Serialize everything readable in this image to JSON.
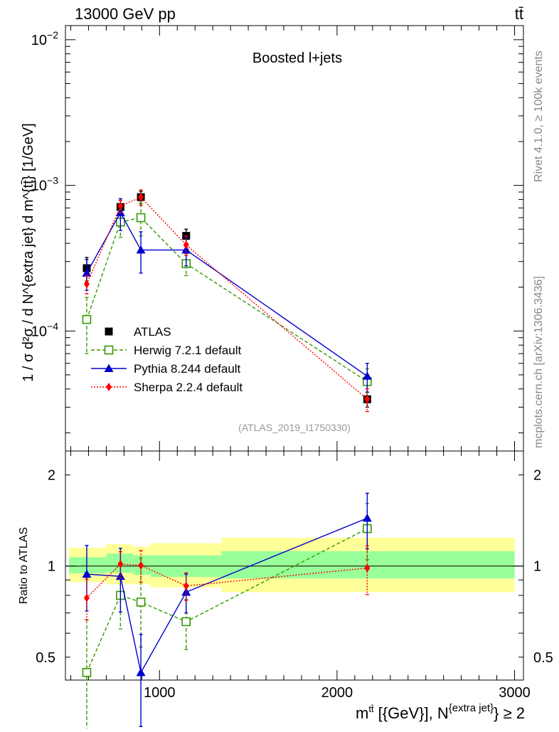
{
  "header": {
    "left": "13000 GeV pp",
    "right": "tt̄"
  },
  "side_labels": {
    "rivet": "Rivet 4.1.0, ≥ 100k events",
    "mcplots": "mcplots.cern.ch [arXiv:1306.3436]"
  },
  "chart_data": [
    {
      "type": "scatter",
      "panel": "main",
      "title": "Boosted l+jets",
      "watermark": "(ATLAS_2019_I1750330)",
      "ylabel": "1 / σ d²σ / d N^{extra jet} d m^{tt̄} [1/GeV]",
      "yscale": "log",
      "ylim": [
        1.5e-05,
        0.0125
      ],
      "xlim": [
        470,
        3050
      ],
      "y_ticks": [
        {
          "value": 0.0001,
          "base": "10",
          "exp": "−4"
        },
        {
          "value": 0.001,
          "base": "10",
          "exp": "−3"
        },
        {
          "value": 0.01,
          "base": "10",
          "exp": "−2"
        }
      ],
      "legend_position": "lower-left",
      "series": [
        {
          "name": "ATLAS",
          "color": "#000000",
          "marker": "square-filled",
          "line": "none",
          "x": [
            590,
            780,
            895,
            1150,
            2170
          ],
          "y": [
            0.00027,
            0.00071,
            0.00083,
            0.00045,
            3.4e-05
          ],
          "err_up": [
            5e-05,
            8e-05,
            8e-05,
            5e-05,
            4e-06
          ],
          "err_down": [
            5e-05,
            8e-05,
            8e-05,
            5e-05,
            4e-06
          ]
        },
        {
          "name": "Herwig 7.2.1 default",
          "color": "#339900",
          "marker": "square-open",
          "line": "dashed",
          "x": [
            590,
            780,
            895,
            1150,
            2170
          ],
          "y": [
            0.00012,
            0.00056,
            0.0006,
            0.00029,
            4.5e-05
          ],
          "err_up": [
            5e-05,
            0.00012,
            0.00015,
            5e-05,
            1e-05
          ],
          "err_down": [
            5e-05,
            0.00012,
            0.00015,
            5e-05,
            1e-05
          ]
        },
        {
          "name": "Pythia 8.244 default",
          "color": "#0000cc",
          "marker": "triangle-filled",
          "line": "solid",
          "x": [
            590,
            780,
            895,
            1150,
            2170
          ],
          "y": [
            0.00025,
            0.00065,
            0.00036,
            0.00036,
            4.9e-05
          ],
          "err_up": [
            6e-05,
            0.00016,
            0.00012,
            8e-05,
            1.1e-05
          ],
          "err_down": [
            6e-05,
            0.00016,
            0.00011,
            8e-05,
            1.1e-05
          ]
        },
        {
          "name": "Sherpa 2.2.4 default",
          "color": "#ff0000",
          "marker": "diamond-filled",
          "line": "dotted",
          "x": [
            590,
            780,
            895,
            1150,
            2170
          ],
          "y": [
            0.00021,
            0.00072,
            0.00083,
            0.00039,
            3.4e-05
          ],
          "err_up": [
            3e-05,
            7e-05,
            0.0001,
            6e-05,
            6e-06
          ],
          "err_down": [
            3e-05,
            7e-05,
            0.0001,
            6e-05,
            6e-06
          ]
        }
      ]
    },
    {
      "type": "scatter",
      "panel": "ratio",
      "ylabel": "Ratio to ATLAS",
      "xlabel_main": "m",
      "xlabel_sup": "tt̄",
      "xlabel_mid": " [{GeV}], N",
      "xlabel_sup2": "{extra jet}",
      "xlabel_tail": "} ≥ 2",
      "yscale": "log",
      "ylim": [
        0.42,
        2.4
      ],
      "xlim": [
        470,
        3050
      ],
      "x_ticks": [
        {
          "value": 1000,
          "label": "1000"
        },
        {
          "value": 2000,
          "label": "2000"
        },
        {
          "value": 3000,
          "label": "3000"
        }
      ],
      "y_ticks": [
        {
          "value": 0.5,
          "label": "0.5"
        },
        {
          "value": 1,
          "label": "1"
        },
        {
          "value": 2,
          "label": "2"
        }
      ],
      "bands": [
        {
          "x0": 490,
          "x1": 700,
          "inner": [
            0.945,
            1.07
          ],
          "outer": [
            0.885,
            1.15
          ]
        },
        {
          "x0": 700,
          "x1": 850,
          "inner": [
            0.95,
            1.1
          ],
          "outer": [
            0.87,
            1.18
          ]
        },
        {
          "x0": 850,
          "x1": 950,
          "inner": [
            0.935,
            1.085
          ],
          "outer": [
            0.87,
            1.16
          ]
        },
        {
          "x0": 950,
          "x1": 1350,
          "inner": [
            0.92,
            1.085
          ],
          "outer": [
            0.85,
            1.19
          ]
        },
        {
          "x0": 1350,
          "x1": 3000,
          "inner": [
            0.91,
            1.12
          ],
          "outer": [
            0.82,
            1.24
          ]
        }
      ],
      "series": [
        {
          "name": "Herwig 7.2.1 default",
          "color": "#339900",
          "marker": "square-open",
          "line": "dashed",
          "x": [
            590,
            780,
            895,
            1150,
            2170
          ],
          "y": [
            0.445,
            0.8,
            0.76,
            0.655,
            1.33
          ],
          "err_up": [
            0.22,
            0.2,
            0.3,
            0.12,
            0.28
          ],
          "err_down": [
            0.2,
            0.18,
            0.22,
            0.125,
            0.28
          ]
        },
        {
          "name": "Pythia 8.244 default",
          "color": "#0000cc",
          "marker": "triangle-filled",
          "line": "solid",
          "x": [
            590,
            780,
            895,
            1150,
            2170
          ],
          "y": [
            0.94,
            0.925,
            0.445,
            0.82,
            1.44
          ],
          "err_up": [
            0.23,
            0.22,
            0.15,
            0.12,
            0.3
          ],
          "err_down": [
            0.23,
            0.22,
            0.15,
            0.12,
            0.3
          ]
        },
        {
          "name": "Sherpa 2.2.4 default",
          "color": "#ff0000",
          "marker": "diamond-filled",
          "line": "dotted",
          "x": [
            590,
            780,
            895,
            1150,
            2170
          ],
          "y": [
            0.785,
            1.015,
            1.005,
            0.86,
            0.985
          ],
          "err_up": [
            0.12,
            0.1,
            0.12,
            0.09,
            0.18
          ],
          "err_down": [
            0.12,
            0.1,
            0.12,
            0.09,
            0.18
          ]
        }
      ]
    }
  ]
}
